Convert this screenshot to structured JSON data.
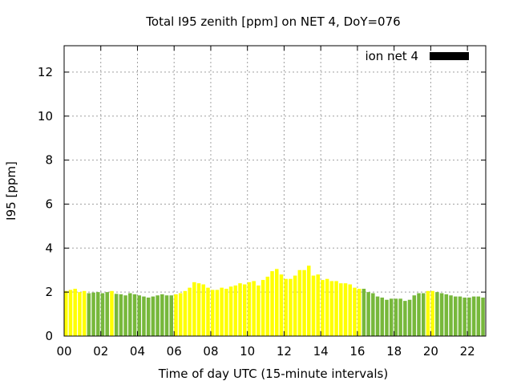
{
  "chart_data": {
    "type": "bar",
    "title": "Total I95 zenith [ppm] on NET 4, DoY=076",
    "xlabel": "Time of day UTC (15-minute intervals)",
    "ylabel": "I95 [ppm]",
    "xlim": [
      0,
      23
    ],
    "ylim": [
      0,
      13.2
    ],
    "x_ticks": [
      "00",
      "02",
      "04",
      "06",
      "08",
      "10",
      "12",
      "14",
      "16",
      "18",
      "20",
      "22"
    ],
    "y_ticks": [
      "0",
      "2",
      "4",
      "6",
      "8",
      "10",
      "12"
    ],
    "grid": true,
    "legend_position": "top-right",
    "series": [
      {
        "name": "ion net 4",
        "legend_color": "#000000",
        "interval_hours": 0.25,
        "values": [
          2.05,
          2.1,
          2.15,
          2.0,
          2.05,
          1.95,
          1.98,
          2.0,
          1.95,
          2.0,
          2.05,
          1.92,
          1.9,
          1.85,
          1.95,
          1.9,
          1.85,
          1.8,
          1.75,
          1.8,
          1.85,
          1.9,
          1.85,
          1.85,
          1.9,
          1.95,
          2.05,
          2.2,
          2.45,
          2.4,
          2.35,
          2.2,
          2.1,
          2.1,
          2.2,
          2.15,
          2.25,
          2.3,
          2.4,
          2.35,
          2.45,
          2.5,
          2.3,
          2.55,
          2.7,
          2.95,
          3.05,
          2.8,
          2.6,
          2.6,
          2.75,
          3.0,
          3.0,
          3.2,
          2.75,
          2.8,
          2.55,
          2.6,
          2.5,
          2.5,
          2.4,
          2.4,
          2.35,
          2.2,
          2.15,
          2.15,
          2.0,
          1.95,
          1.8,
          1.75,
          1.65,
          1.7,
          1.7,
          1.7,
          1.6,
          1.65,
          1.85,
          1.95,
          1.95,
          2.05,
          2.05,
          2.0,
          1.95,
          1.9,
          1.85,
          1.8,
          1.8,
          1.75,
          1.75,
          1.8,
          1.8,
          1.75
        ],
        "colors": [
          "#ffff00",
          "#ffff00",
          "#ffff00",
          "#ffff00",
          "#ffff00",
          "#77b83b",
          "#77b83b",
          "#77b83b",
          "#77b83b",
          "#77b83b",
          "#ffff00",
          "#77b83b",
          "#77b83b",
          "#77b83b",
          "#77b83b",
          "#77b83b",
          "#77b83b",
          "#77b83b",
          "#77b83b",
          "#77b83b",
          "#77b83b",
          "#77b83b",
          "#77b83b",
          "#77b83b",
          "#ffff00",
          "#ffff00",
          "#ffff00",
          "#ffff00",
          "#ffff00",
          "#ffff00",
          "#ffff00",
          "#ffff00",
          "#ffff00",
          "#ffff00",
          "#ffff00",
          "#ffff00",
          "#ffff00",
          "#ffff00",
          "#ffff00",
          "#ffff00",
          "#ffff00",
          "#ffff00",
          "#ffff00",
          "#ffff00",
          "#ffff00",
          "#ffff00",
          "#ffff00",
          "#ffff00",
          "#ffff00",
          "#ffff00",
          "#ffff00",
          "#ffff00",
          "#ffff00",
          "#ffff00",
          "#ffff00",
          "#ffff00",
          "#ffff00",
          "#ffff00",
          "#ffff00",
          "#ffff00",
          "#ffff00",
          "#ffff00",
          "#ffff00",
          "#ffff00",
          "#ffff00",
          "#77b83b",
          "#77b83b",
          "#77b83b",
          "#77b83b",
          "#77b83b",
          "#77b83b",
          "#77b83b",
          "#77b83b",
          "#77b83b",
          "#77b83b",
          "#77b83b",
          "#77b83b",
          "#77b83b",
          "#77b83b",
          "#ffff00",
          "#ffff00",
          "#77b83b",
          "#77b83b",
          "#77b83b",
          "#77b83b",
          "#77b83b",
          "#77b83b",
          "#77b83b",
          "#77b83b",
          "#77b83b",
          "#77b83b",
          "#77b83b"
        ]
      }
    ]
  }
}
